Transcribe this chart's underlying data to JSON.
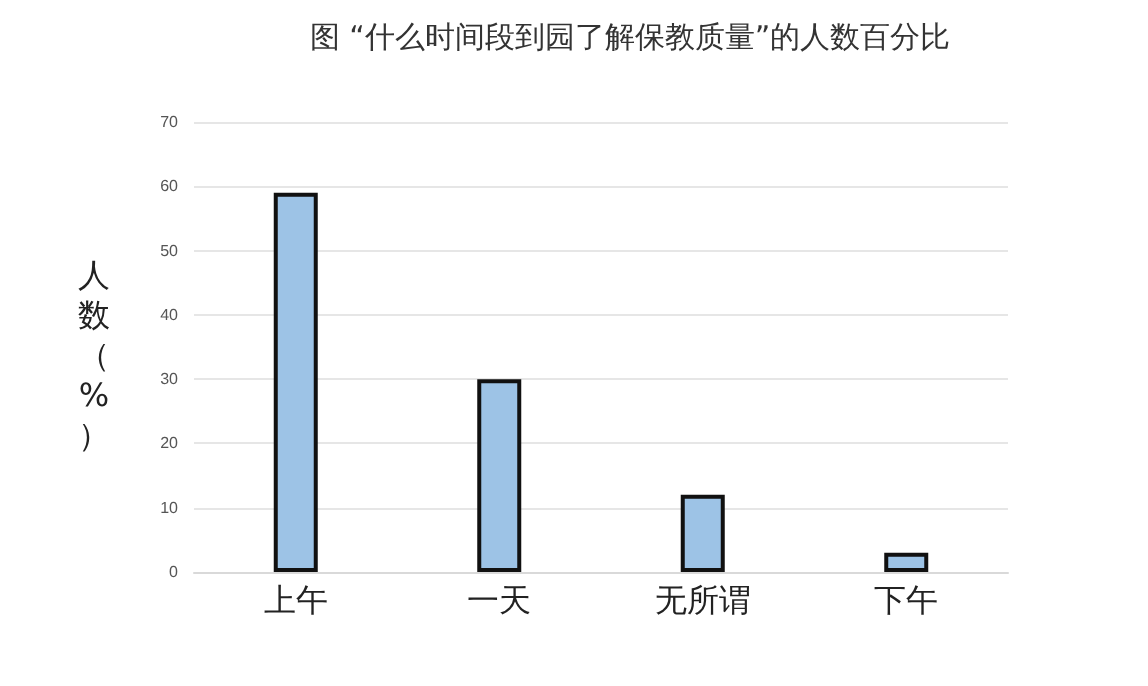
{
  "chart_data": {
    "type": "bar",
    "title": "图 “什么时间段到园了解保教质量”的人数百分比",
    "ylabel": "人数（%）",
    "categories": [
      "上午",
      "一天",
      "无所谓",
      "下午"
    ],
    "values": [
      59,
      30,
      12,
      3
    ],
    "color": "#9dc3e6",
    "ylim": [
      0,
      70
    ],
    "yticks": [
      0,
      10,
      20,
      30,
      40,
      50,
      60,
      70
    ],
    "grid": "y"
  }
}
